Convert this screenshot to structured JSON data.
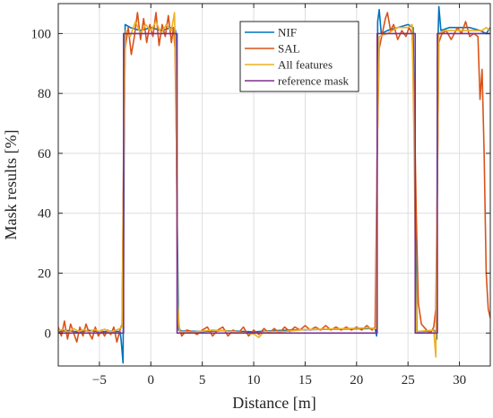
{
  "chart_data": {
    "type": "line",
    "xlabel": "Distance [m]",
    "ylabel": "Mask results [%]",
    "xlim": [
      -9,
      33
    ],
    "ylim": [
      -11,
      110
    ],
    "xticks": [
      -5,
      0,
      5,
      10,
      15,
      20,
      25,
      30
    ],
    "xtick_labels": [
      "−5",
      "0",
      "5",
      "10",
      "15",
      "20",
      "25",
      "30"
    ],
    "yticks": [
      0,
      20,
      40,
      60,
      80,
      100
    ],
    "ytick_labels": [
      "0",
      "20",
      "40",
      "60",
      "80",
      "100"
    ],
    "grid": true,
    "legend_position": "top-right",
    "series": [
      {
        "name": "NIF",
        "color": "#0072BD",
        "points": [
          [
            -9,
            0.5
          ],
          [
            -8,
            0.8
          ],
          [
            -7,
            0.3
          ],
          [
            -6,
            0.9
          ],
          [
            -5,
            0.4
          ],
          [
            -4,
            0.6
          ],
          [
            -3,
            0.5
          ],
          [
            -2.9,
            -2
          ],
          [
            -2.7,
            -10
          ],
          [
            -2.6,
            60
          ],
          [
            -2.5,
            103
          ],
          [
            -2,
            102
          ],
          [
            -1,
            101
          ],
          [
            0,
            102
          ],
          [
            1,
            101
          ],
          [
            2,
            102
          ],
          [
            2.4,
            101
          ],
          [
            2.55,
            40
          ],
          [
            2.7,
            1
          ],
          [
            3,
            0.7
          ],
          [
            5,
            0.5
          ],
          [
            7,
            0.8
          ],
          [
            10,
            0.4
          ],
          [
            12,
            0.8
          ],
          [
            15,
            1.1
          ],
          [
            18,
            1.3
          ],
          [
            20,
            1.4
          ],
          [
            21.8,
            1.5
          ],
          [
            21.95,
            -1
          ],
          [
            22.05,
            104
          ],
          [
            22.2,
            108
          ],
          [
            22.4,
            100
          ],
          [
            23,
            101
          ],
          [
            24,
            102
          ],
          [
            25,
            103
          ],
          [
            25.5,
            102
          ],
          [
            25.7,
            50
          ],
          [
            25.85,
            0.5
          ],
          [
            27,
            0.6
          ],
          [
            27.5,
            1
          ],
          [
            27.7,
            0.5
          ],
          [
            27.8,
            -2
          ],
          [
            27.85,
            90
          ],
          [
            28,
            109
          ],
          [
            28.2,
            101
          ],
          [
            29,
            102
          ],
          [
            30,
            102
          ],
          [
            31,
            102
          ],
          [
            32,
            101
          ],
          [
            32.6,
            100
          ],
          [
            32.8,
            101
          ],
          [
            33,
            102
          ]
        ]
      },
      {
        "name": "SAL",
        "color": "#D95319",
        "points": [
          [
            -9,
            2
          ],
          [
            -8.7,
            -1
          ],
          [
            -8.4,
            4
          ],
          [
            -8.1,
            -2
          ],
          [
            -7.8,
            3
          ],
          [
            -7.5,
            0
          ],
          [
            -7.2,
            -3
          ],
          [
            -6.9,
            2
          ],
          [
            -6.6,
            -1
          ],
          [
            -6.3,
            3
          ],
          [
            -6,
            0
          ],
          [
            -5.7,
            -2
          ],
          [
            -5.4,
            2
          ],
          [
            -5.1,
            -1
          ],
          [
            -4.8,
            1
          ],
          [
            -4.5,
            -1
          ],
          [
            -4.2,
            1
          ],
          [
            -3.9,
            -0.5
          ],
          [
            -3.6,
            2
          ],
          [
            -3.3,
            -3
          ],
          [
            -3,
            1
          ],
          [
            -2.8,
            3
          ],
          [
            -2.65,
            60
          ],
          [
            -2.5,
            95
          ],
          [
            -2.2,
            102
          ],
          [
            -1.9,
            93
          ],
          [
            -1.6,
            99
          ],
          [
            -1.3,
            107
          ],
          [
            -1,
            98
          ],
          [
            -0.7,
            105
          ],
          [
            -0.4,
            97
          ],
          [
            -0.1,
            103
          ],
          [
            0.2,
            99
          ],
          [
            0.5,
            107
          ],
          [
            0.8,
            96
          ],
          [
            1.1,
            103
          ],
          [
            1.4,
            99
          ],
          [
            1.7,
            106
          ],
          [
            2,
            97
          ],
          [
            2.2,
            102
          ],
          [
            2.35,
            95
          ],
          [
            2.5,
            60
          ],
          [
            2.6,
            8
          ],
          [
            2.75,
            2
          ],
          [
            3,
            -1
          ],
          [
            3.5,
            1
          ],
          [
            4,
            0.5
          ],
          [
            4.5,
            -0.5
          ],
          [
            5,
            1
          ],
          [
            5.5,
            2
          ],
          [
            6,
            -1
          ],
          [
            6.5,
            1
          ],
          [
            7,
            2
          ],
          [
            7.5,
            -1
          ],
          [
            8,
            1
          ],
          [
            8.5,
            0
          ],
          [
            9,
            2
          ],
          [
            9.5,
            -1
          ],
          [
            10,
            1
          ],
          [
            10.5,
            -0.5
          ],
          [
            11,
            1.5
          ],
          [
            11.5,
            0
          ],
          [
            12,
            1.5
          ],
          [
            12.5,
            0
          ],
          [
            13,
            2
          ],
          [
            13.5,
            0.5
          ],
          [
            14,
            2
          ],
          [
            14.5,
            1
          ],
          [
            15,
            2.5
          ],
          [
            15.5,
            1
          ],
          [
            16,
            2
          ],
          [
            16.5,
            1
          ],
          [
            17,
            2.5
          ],
          [
            17.5,
            1
          ],
          [
            18,
            2
          ],
          [
            18.5,
            1
          ],
          [
            19,
            2
          ],
          [
            19.5,
            1
          ],
          [
            20,
            2
          ],
          [
            20.5,
            1
          ],
          [
            21,
            2.5
          ],
          [
            21.5,
            1
          ],
          [
            21.8,
            2
          ],
          [
            22,
            60
          ],
          [
            22.2,
            95
          ],
          [
            22.5,
            100
          ],
          [
            22.8,
            105
          ],
          [
            23,
            107
          ],
          [
            23.3,
            101
          ],
          [
            23.6,
            103
          ],
          [
            24,
            98
          ],
          [
            24.4,
            101
          ],
          [
            24.8,
            99
          ],
          [
            25.1,
            102
          ],
          [
            25.4,
            100
          ],
          [
            25.6,
            80
          ],
          [
            25.8,
            40
          ],
          [
            26,
            10
          ],
          [
            26.3,
            3
          ],
          [
            26.8,
            1
          ],
          [
            27.2,
            0
          ],
          [
            27.5,
            2
          ],
          [
            27.7,
            8
          ],
          [
            27.85,
            50
          ],
          [
            28,
            97
          ],
          [
            28.3,
            100
          ],
          [
            28.7,
            101
          ],
          [
            29.2,
            98
          ],
          [
            29.8,
            102
          ],
          [
            30.2,
            100
          ],
          [
            30.6,
            104
          ],
          [
            31,
            99
          ],
          [
            31.4,
            100
          ],
          [
            31.8,
            99
          ],
          [
            32,
            78
          ],
          [
            32.2,
            88
          ],
          [
            32.4,
            60
          ],
          [
            32.6,
            20
          ],
          [
            32.8,
            8
          ],
          [
            33,
            5
          ]
        ]
      },
      {
        "name": "All features",
        "color": "#EDB120",
        "points": [
          [
            -9,
            0.8
          ],
          [
            -8.5,
            1.2
          ],
          [
            -8,
            0.2
          ],
          [
            -7.5,
            1.5
          ],
          [
            -7,
            0.5
          ],
          [
            -6.5,
            1.2
          ],
          [
            -6,
            0.3
          ],
          [
            -5.5,
            1.2
          ],
          [
            -5,
            0.5
          ],
          [
            -4.5,
            1.3
          ],
          [
            -4,
            0.4
          ],
          [
            -3.5,
            0.8
          ],
          [
            -3,
            1.5
          ],
          [
            -2.8,
            2
          ],
          [
            -2.6,
            70
          ],
          [
            -2.45,
            101
          ],
          [
            -2,
            99
          ],
          [
            -1.5,
            104
          ],
          [
            -1,
            100
          ],
          [
            -0.5,
            103
          ],
          [
            0,
            101
          ],
          [
            0.5,
            104
          ],
          [
            1,
            100
          ],
          [
            1.5,
            103
          ],
          [
            2,
            101
          ],
          [
            2.3,
            107
          ],
          [
            2.45,
            80
          ],
          [
            2.6,
            10
          ],
          [
            2.8,
            0.5
          ],
          [
            4,
            0.3
          ],
          [
            6,
            1
          ],
          [
            8,
            0.5
          ],
          [
            10,
            -0.3
          ],
          [
            10.5,
            -1.5
          ],
          [
            11,
            0.5
          ],
          [
            13,
            0.5
          ],
          [
            15,
            1.2
          ],
          [
            17,
            1.3
          ],
          [
            19,
            1.5
          ],
          [
            21,
            1.7
          ],
          [
            21.9,
            1.5
          ],
          [
            22,
            60
          ],
          [
            22.2,
            99
          ],
          [
            23,
            100
          ],
          [
            23.5,
            101
          ],
          [
            24,
            102
          ],
          [
            25,
            102
          ],
          [
            25.4,
            103
          ],
          [
            25.6,
            60
          ],
          [
            25.8,
            0.5
          ],
          [
            27,
            0.8
          ],
          [
            27.5,
            1
          ],
          [
            27.7,
            -8
          ],
          [
            27.8,
            30
          ],
          [
            28,
            100
          ],
          [
            28.5,
            101
          ],
          [
            29.5,
            101
          ],
          [
            30.5,
            101
          ],
          [
            31.5,
            101
          ],
          [
            32.2,
            101
          ],
          [
            32.6,
            102
          ],
          [
            33,
            101
          ]
        ]
      },
      {
        "name": "reference mask",
        "color": "#7E2F8E",
        "points": [
          [
            -9,
            0
          ],
          [
            -2.65,
            0
          ],
          [
            -2.65,
            100
          ],
          [
            2.55,
            100
          ],
          [
            2.55,
            0
          ],
          [
            22,
            0
          ],
          [
            22,
            100
          ],
          [
            25.7,
            100
          ],
          [
            25.7,
            0
          ],
          [
            27.85,
            0
          ],
          [
            27.85,
            100
          ],
          [
            33,
            100
          ]
        ]
      }
    ]
  }
}
